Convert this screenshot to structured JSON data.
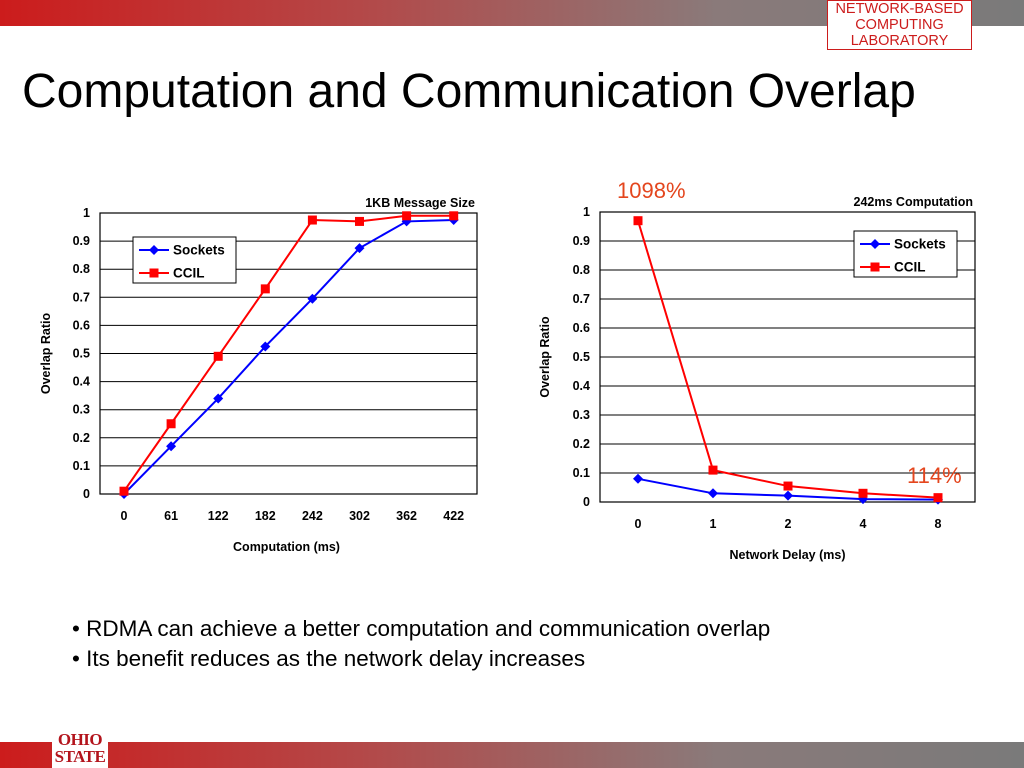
{
  "header": {
    "lab_logo_lines": [
      "NETWORK-BASED",
      "COMPUTING",
      "LABORATORY"
    ],
    "title": "Computation and Communication Overlap"
  },
  "footer": {
    "osu_logo_lines": [
      "OHIO",
      "STATE"
    ]
  },
  "bullets": [
    "• RDMA can achieve a better computation and communication overlap",
    "• Its benefit reduces as the network delay increases"
  ],
  "annotations": {
    "left_peak": "1098%",
    "right_tail": "114%"
  },
  "colors": {
    "sockets": "#0000ff",
    "ccil": "#ff0000",
    "annotation": "#e4461e",
    "brand_red": "#cc1c1c"
  },
  "chart_data": [
    {
      "type": "line",
      "title": "1KB Message Size",
      "xlabel": "Computation (ms)",
      "ylabel": "Overlap Ratio",
      "categories": [
        "0",
        "61",
        "122",
        "182",
        "242",
        "302",
        "362",
        "422"
      ],
      "ylim": [
        0,
        1
      ],
      "yticks": [
        "0",
        "0.1",
        "0.2",
        "0.3",
        "0.4",
        "0.5",
        "0.6",
        "0.7",
        "0.8",
        "0.9",
        "1"
      ],
      "grid": true,
      "legend_position": "top-left",
      "series": [
        {
          "name": "Sockets",
          "color": "#0000ff",
          "marker": "diamond",
          "values": [
            0.0,
            0.17,
            0.34,
            0.525,
            0.695,
            0.875,
            0.97,
            0.975
          ]
        },
        {
          "name": "CCIL",
          "color": "#ff0000",
          "marker": "square",
          "values": [
            0.01,
            0.25,
            0.49,
            0.73,
            0.975,
            0.97,
            0.99,
            0.99
          ]
        }
      ]
    },
    {
      "type": "line",
      "title": "242ms Computation",
      "xlabel": "Network Delay (ms)",
      "ylabel": "Overlap Ratio",
      "categories": [
        "0",
        "1",
        "2",
        "4",
        "8"
      ],
      "ylim": [
        0,
        1
      ],
      "yticks": [
        "0",
        "0.1",
        "0.2",
        "0.3",
        "0.4",
        "0.5",
        "0.6",
        "0.7",
        "0.8",
        "0.9",
        "1"
      ],
      "grid": true,
      "legend_position": "top-right",
      "series": [
        {
          "name": "Sockets",
          "color": "#0000ff",
          "marker": "diamond",
          "values": [
            0.08,
            0.03,
            0.022,
            0.01,
            0.008
          ]
        },
        {
          "name": "CCIL",
          "color": "#ff0000",
          "marker": "square",
          "values": [
            0.97,
            0.11,
            0.055,
            0.03,
            0.015
          ]
        }
      ]
    }
  ]
}
